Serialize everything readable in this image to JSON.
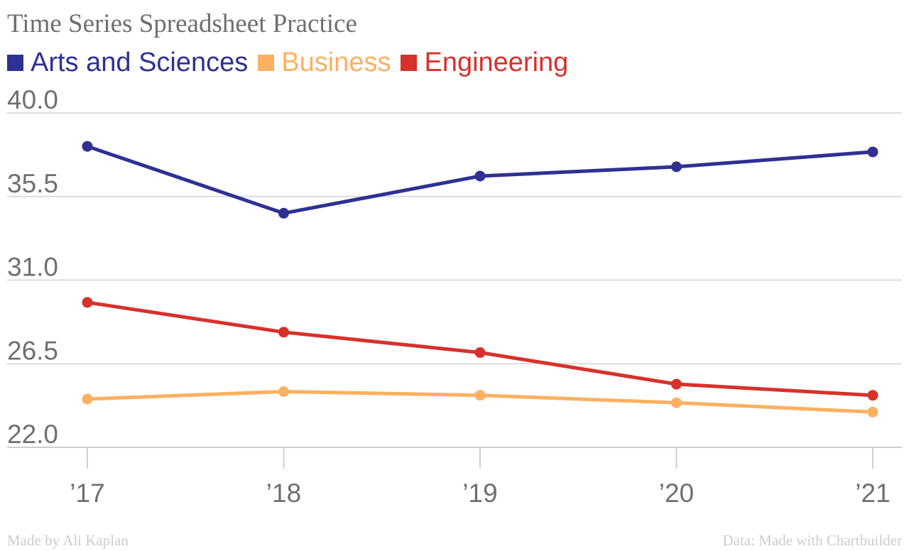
{
  "chart_data": {
    "type": "line",
    "title": "Time Series Spreadsheet Practice",
    "xlabel": "",
    "ylabel": "",
    "x": [
      "’17",
      "’18",
      "’19",
      "’20",
      "’21"
    ],
    "ylim": [
      22.0,
      40.0
    ],
    "yticks": [
      "22.0",
      "26.5",
      "31.0",
      "35.5",
      "40.0"
    ],
    "grid": true,
    "legend_position": "top-left",
    "series": [
      {
        "name": "Arts and Sciences",
        "color": "#2e3192",
        "values": [
          38.2,
          34.6,
          36.6,
          37.1,
          37.9
        ]
      },
      {
        "name": "Business",
        "color": "#fdb061",
        "values": [
          24.6,
          25.0,
          24.8,
          24.4,
          23.9
        ]
      },
      {
        "name": "Engineering",
        "color": "#d7312b",
        "values": [
          29.8,
          28.2,
          27.1,
          25.4,
          24.8
        ]
      }
    ]
  },
  "footer": {
    "left": "Made by Ali Kaplan",
    "right": "Data: Made with Chartbuilder"
  }
}
